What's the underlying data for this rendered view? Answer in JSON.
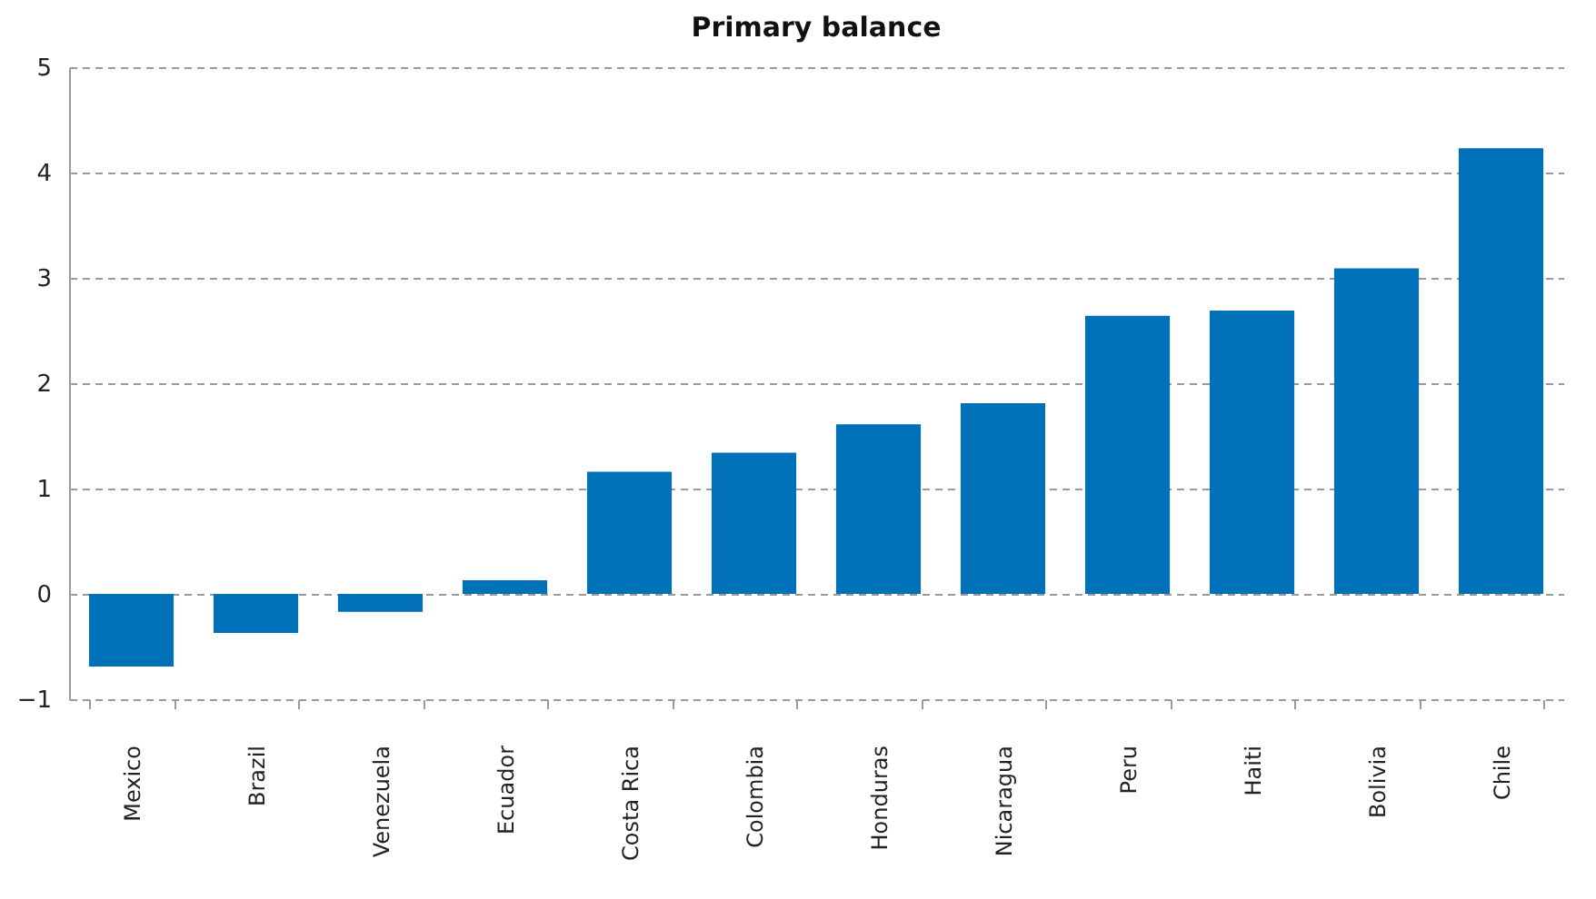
{
  "chart_data": {
    "type": "bar",
    "title": "Primary balance",
    "categories": [
      "Mexico",
      "Brazil",
      "Venezuela",
      "Ecuador",
      "Costa Rica",
      "Colombia",
      "Honduras",
      "Nicaragua",
      "Peru",
      "Haiti",
      "Bolivia",
      "Chile"
    ],
    "values": [
      -0.69,
      -0.37,
      -0.17,
      0.13,
      1.16,
      1.34,
      1.61,
      1.81,
      2.64,
      2.69,
      3.09,
      4.23
    ],
    "color": "#0070b8",
    "ylim": [
      -1,
      5
    ],
    "yticks": [
      -1,
      0,
      1,
      2,
      3,
      4,
      5
    ],
    "grid": "y"
  }
}
